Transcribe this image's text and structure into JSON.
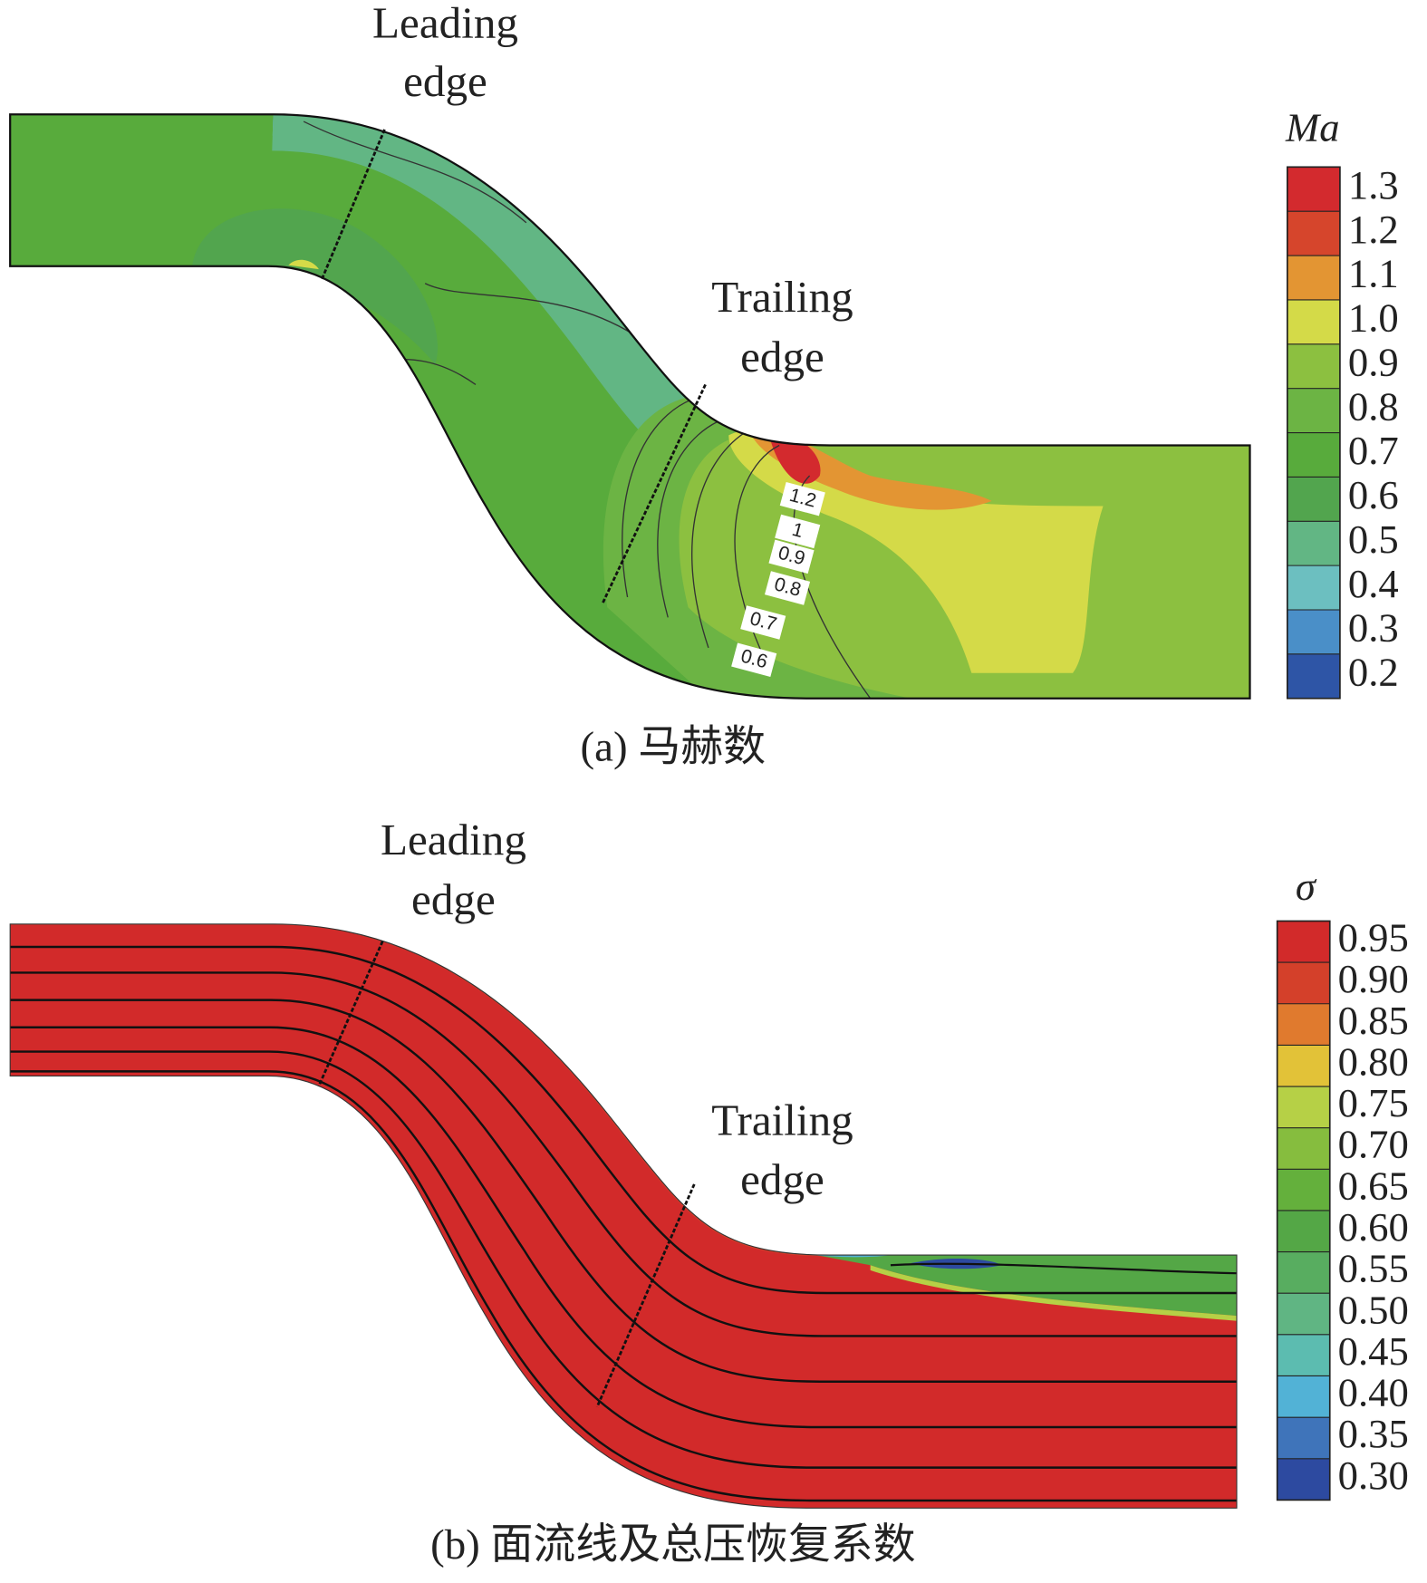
{
  "panel_a": {
    "annotations": {
      "leading_edge": [
        "Leading",
        "edge"
      ],
      "trailing_edge": [
        "Trailing",
        "edge"
      ]
    },
    "colorbar": {
      "title": "Ma",
      "ticks": [
        "1.3",
        "1.2",
        "1.1",
        "1.0",
        "0.9",
        "0.8",
        "0.7",
        "0.6",
        "0.5",
        "0.4",
        "0.3",
        "0.2"
      ],
      "colors": [
        "#d32a2e",
        "#d6452c",
        "#e39533",
        "#d4da48",
        "#8cc040",
        "#6cb444",
        "#58ab3c",
        "#52a54e",
        "#62b684",
        "#6cbfc0",
        "#4a8fc8",
        "#2e55a6"
      ]
    },
    "contour_labels": [
      "1.2",
      "1",
      "0.9",
      "0.8",
      "0.7",
      "0.6"
    ],
    "caption": "(a) 马赫数"
  },
  "panel_b": {
    "annotations": {
      "leading_edge": [
        "Leading",
        "edge"
      ],
      "trailing_edge": [
        "Trailing",
        "edge"
      ]
    },
    "colorbar": {
      "title": "σ",
      "ticks": [
        "0.95",
        "0.90",
        "0.85",
        "0.80",
        "0.75",
        "0.70",
        "0.65",
        "0.60",
        "0.55",
        "0.50",
        "0.45",
        "0.40",
        "0.35",
        "0.30"
      ],
      "colors": [
        "#d22a2a",
        "#d4402a",
        "#e07a2e",
        "#e2c238",
        "#b6d046",
        "#86bd3e",
        "#64b03c",
        "#54a746",
        "#58ad60",
        "#60b583",
        "#5cbcb0",
        "#52b2d6",
        "#3f74ba",
        "#2d4aa0"
      ]
    },
    "caption": "(b) 面流线及总压恢复系数"
  }
}
